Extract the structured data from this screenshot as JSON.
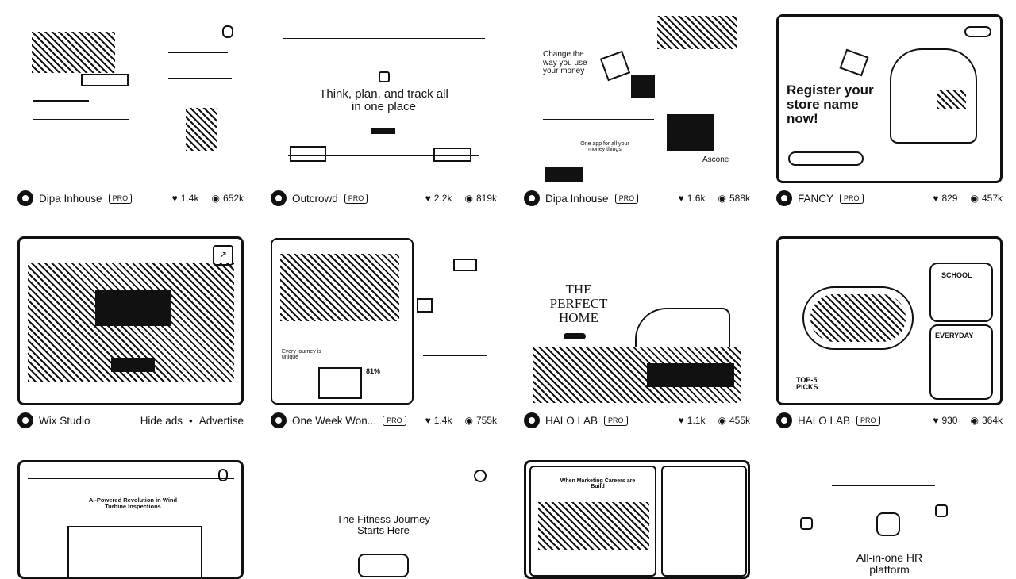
{
  "cards": [
    {
      "author": "Dipa Inhouse",
      "badge": "PRO",
      "likes": "1.4k",
      "views": "652k"
    },
    {
      "author": "Outcrowd",
      "badge": "PRO",
      "likes": "2.2k",
      "views": "819k",
      "headline": "Think, plan, and track all in one place"
    },
    {
      "author": "Dipa Inhouse",
      "badge": "PRO",
      "likes": "1.6k",
      "views": "588k",
      "headline": "Change the way you use your money",
      "caption": "One app for all your money things",
      "side": "Ascone"
    },
    {
      "author": "FANCY",
      "badge": "PRO",
      "likes": "829",
      "views": "457k",
      "headline": "Register your store name now!"
    },
    {
      "author": "Wix Studio",
      "hide_ads": "Hide ads",
      "dot": "•",
      "advertise": "Advertise"
    },
    {
      "author": "One Week Won...",
      "badge": "PRO",
      "likes": "1.4k",
      "views": "755k",
      "caption": "Every journey is unique",
      "pct": "81%"
    },
    {
      "author": "HALO LAB",
      "badge": "PRO",
      "likes": "1.1k",
      "views": "455k",
      "headline": "THE PERFECT HOME"
    },
    {
      "author": "HALO LAB",
      "badge": "PRO",
      "likes": "930",
      "views": "364k",
      "school": "SCHOOL",
      "everyday": "EVERYDAY",
      "top": "TOP-5 PICKS"
    },
    {
      "headline": "AI-Powered Revolution in Wind Turbine Inspections"
    },
    {
      "headline": "The Fitness Journey Starts Here"
    },
    {
      "headline": "When Marketing Careers are Build"
    },
    {
      "headline": "All-in-one HR platform"
    }
  ],
  "icons": {
    "like": "heart-icon",
    "view": "eye-icon",
    "external": "external-link-icon"
  }
}
